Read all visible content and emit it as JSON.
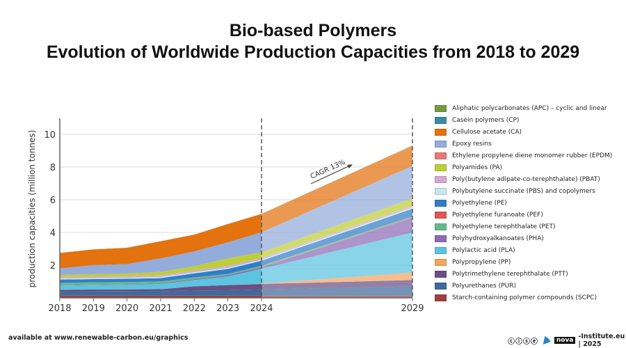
{
  "header": {
    "title_line1": "Bio-based Polymers",
    "title_line2": "Evolution of Worldwide Production Capacities from 2018 to 2029"
  },
  "footer": {
    "source": "available at www.renewable-carbon.eu/graphics",
    "license_icons": "cc-by-nc-nd-icons",
    "brand": "nova",
    "brand_suffix": "-Institute.eu | 2025"
  },
  "chart_data": {
    "type": "area",
    "stacked": true,
    "title": "",
    "xlabel": "",
    "ylabel": "production capacities (million tonnes)",
    "x": [
      2018,
      2019,
      2020,
      2021,
      2022,
      2023,
      2024,
      2029
    ],
    "xticks": [
      "2018",
      "2019",
      "2020",
      "2021",
      "2022",
      "2023",
      "2024",
      "2029"
    ],
    "yticks": [
      "2",
      "4",
      "6",
      "8",
      "10"
    ],
    "ylim": [
      0,
      11
    ],
    "grid": true,
    "legend_position": "right",
    "forecast_marker_years": [
      2024,
      2029
    ],
    "annotation": "CAGR 13%",
    "series": [
      {
        "name": "Starch-containing polymer compounds (SCPC)",
        "color": "#a04040",
        "values": [
          0.14,
          0.14,
          0.14,
          0.14,
          0.14,
          0.14,
          0.14,
          0.14
        ]
      },
      {
        "name": "Polyurethanes (PUR)",
        "color": "#3f6a9a",
        "values": [
          0.24,
          0.25,
          0.26,
          0.27,
          0.31,
          0.33,
          0.38,
          0.56
        ]
      },
      {
        "name": "Polytrimethylene terephthalate (PTT)",
        "color": "#6a4f86",
        "values": [
          0.12,
          0.12,
          0.12,
          0.12,
          0.26,
          0.31,
          0.33,
          0.39
        ]
      },
      {
        "name": "Polypropylene (PP)",
        "color": "#f4a460",
        "values": [
          0,
          0,
          0,
          0,
          0,
          0,
          0.02,
          0.46
        ]
      },
      {
        "name": "Polylactic acid (PLA)",
        "color": "#5bc4e0",
        "values": [
          0.25,
          0.27,
          0.28,
          0.32,
          0.38,
          0.53,
          0.91,
          2.45
        ]
      },
      {
        "name": "Polyhydroxyalkanoates (PHA)",
        "color": "#8e6bb5",
        "values": [
          0.02,
          0.02,
          0.03,
          0.04,
          0.06,
          0.08,
          0.1,
          0.9
        ]
      },
      {
        "name": "Polyethylene terephthalate (PET)",
        "color": "#66b98a",
        "values": [
          0.15,
          0.15,
          0.14,
          0.12,
          0.1,
          0.08,
          0.08,
          0.06
        ]
      },
      {
        "name": "Polyethylene furanoate (PEF)",
        "color": "#e05555",
        "values": [
          0,
          0,
          0,
          0,
          0,
          0,
          0.01,
          0.03
        ]
      },
      {
        "name": "Polyethylene (PE)",
        "color": "#2f7fc8",
        "values": [
          0.2,
          0.2,
          0.2,
          0.2,
          0.25,
          0.3,
          0.3,
          0.46
        ]
      },
      {
        "name": "Polybutylene succinate (PBS) and copolymers",
        "color": "#c6e6f0",
        "values": [
          0.06,
          0.06,
          0.06,
          0.07,
          0.07,
          0.07,
          0.06,
          0.07
        ]
      },
      {
        "name": "Poly(butylene adipate-co-terephthalate) (PBAT)",
        "color": "#d6a9d2",
        "values": [
          0.08,
          0.08,
          0.09,
          0.1,
          0.11,
          0.12,
          0.11,
          0.1
        ]
      },
      {
        "name": "Polyamides (PA)",
        "color": "#bccf35",
        "values": [
          0.14,
          0.15,
          0.16,
          0.2,
          0.25,
          0.45,
          0.35,
          0.46
        ]
      },
      {
        "name": "Ethylene propylene diene monomer rubber (EPDM)",
        "color": "#e87a7a",
        "values": [
          0.01,
          0.01,
          0.01,
          0.01,
          0.01,
          0.01,
          0.01,
          0.01
        ]
      },
      {
        "name": "Epoxy resins",
        "color": "#93acdb",
        "values": [
          0.4,
          0.55,
          0.58,
          0.83,
          0.9,
          0.98,
          1.21,
          1.98
        ]
      },
      {
        "name": "Cellulose acetate (CA)",
        "color": "#e3720f",
        "values": [
          0.93,
          0.96,
          0.99,
          1.04,
          1.02,
          1.11,
          1.12,
          1.24
        ]
      },
      {
        "name": "Casein polymers (CP)",
        "color": "#3b8aa6",
        "values": [
          0,
          0,
          0,
          0,
          0,
          0,
          0,
          0
        ]
      },
      {
        "name": "Aliphatic polycarbonates (APC) – cyclic and linear",
        "color": "#76983f",
        "values": [
          0.01,
          0.01,
          0.01,
          0.01,
          0.01,
          0.01,
          0.01,
          0.01
        ]
      }
    ],
    "legend_order": [
      "Aliphatic polycarbonates (APC) – cyclic and linear",
      "Casein polymers (CP)",
      "Cellulose acetate (CA)",
      "Epoxy resins",
      "Ethylene propylene diene monomer rubber (EPDM)",
      "Polyamides (PA)",
      "Poly(butylene adipate-co-terephthalate) (PBAT)",
      "Polybutylene succinate (PBS) and copolymers",
      "Polyethylene (PE)",
      "Polyethylene furanoate (PEF)",
      "Polyethylene terephthalate (PET)",
      "Polyhydroxyalkanoates (PHA)",
      "Polylactic acid (PLA)",
      "Polypropylene (PP)",
      "Polytrimethylene terephthalate (PTT)",
      "Polyurethanes (PUR)",
      "Starch-containing polymer compounds (SCPC)"
    ]
  }
}
